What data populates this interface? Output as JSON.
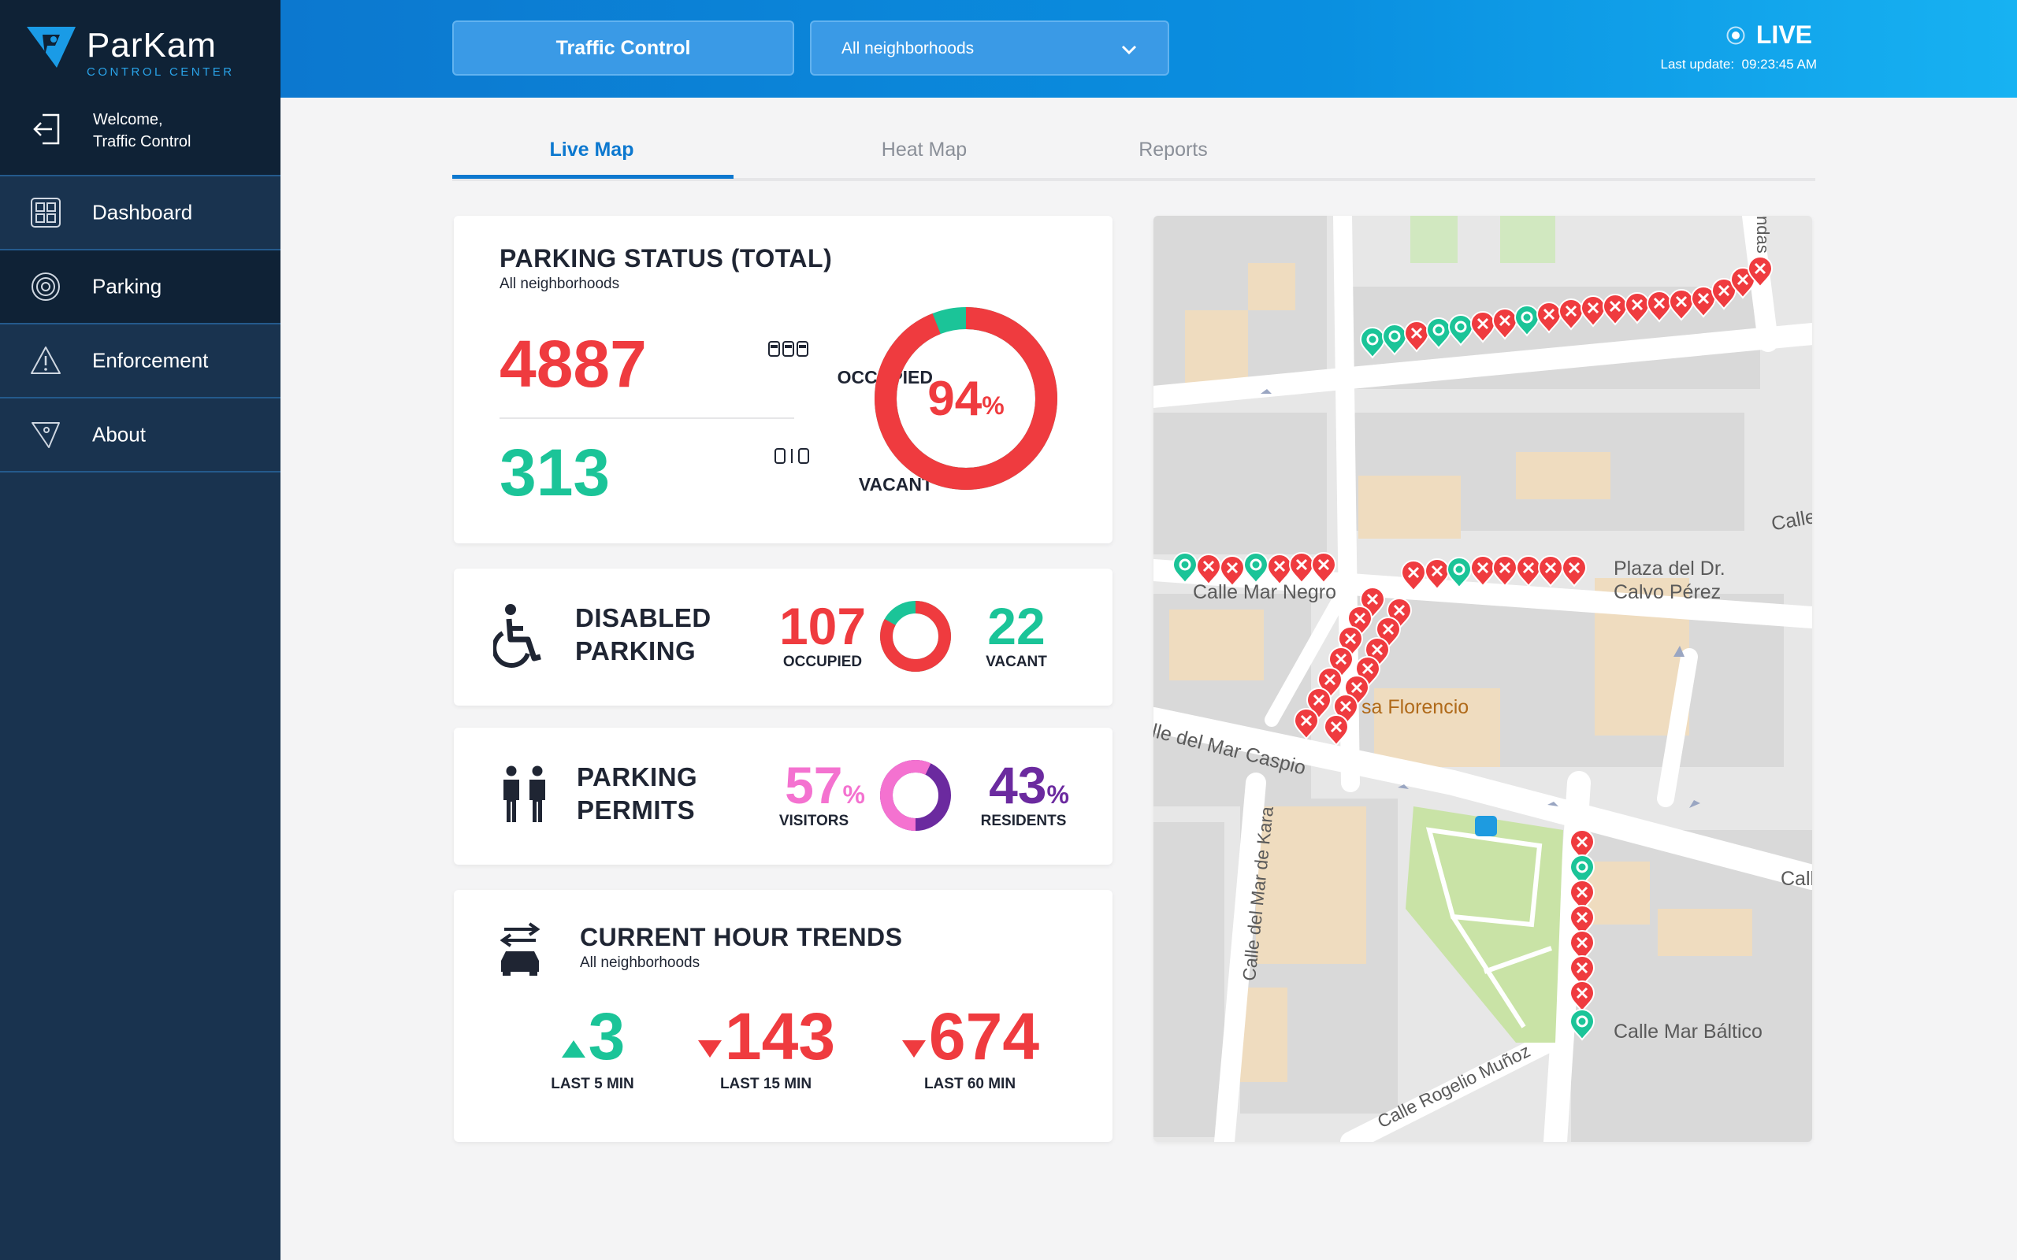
{
  "app": {
    "brand": "ParKam",
    "brand_sub": "CONTROL CENTER",
    "welcome_line1": "Welcome,",
    "welcome_line2": "Traffic Control"
  },
  "sidebar": {
    "items": [
      {
        "label": "Dashboard",
        "icon": "dashboard-grid-icon"
      },
      {
        "label": "Parking",
        "icon": "target-icon"
      },
      {
        "label": "Enforcement",
        "icon": "warning-triangle-icon"
      },
      {
        "label": "About",
        "icon": "parkam-logo-icon"
      }
    ],
    "active_index": 1
  },
  "header": {
    "mode_button": "Traffic Control",
    "neighborhood_select": "All neighborhoods",
    "live_label": "LIVE",
    "last_update_label": "Last update:",
    "last_update_time": "09:23:45 AM"
  },
  "tabs": [
    {
      "label": "Live Map",
      "active": true
    },
    {
      "label": "Heat Map",
      "active": false
    },
    {
      "label": "Reports",
      "active": false
    }
  ],
  "parking_status": {
    "title": "PARKING STATUS (TOTAL)",
    "subtitle": "All neighborhoods",
    "occupied_value": "4887",
    "occupied_label": "OCCUPIED",
    "vacant_value": "313",
    "vacant_label": "VACANT",
    "occupancy_percent": "94",
    "percent_sign": "%",
    "occupancy_fraction": 0.94
  },
  "disabled_parking": {
    "title_line1": "DISABLED",
    "title_line2": "PARKING",
    "occupied_value": "107",
    "occupied_label": "OCCUPIED",
    "vacant_value": "22",
    "vacant_label": "VACANT",
    "occupied_fraction": 0.83
  },
  "parking_permits": {
    "title_line1": "PARKING",
    "title_line2": "PERMITS",
    "visitors_value": "57",
    "visitors_label": "VISITORS",
    "residents_value": "43",
    "residents_label": "RESIDENTS",
    "percent_sign": "%",
    "visitors_fraction": 0.57
  },
  "trends": {
    "title": "CURRENT HOUR TRENDS",
    "subtitle": "All neighborhoods",
    "items": [
      {
        "value": "3",
        "label": "LAST 5 MIN",
        "direction": "up"
      },
      {
        "value": "143",
        "label": "LAST 15 MIN",
        "direction": "down"
      },
      {
        "value": "674",
        "label": "LAST 60 MIN",
        "direction": "down"
      }
    ]
  },
  "map": {
    "street_labels": {
      "mar_negro": "Calle Mar Negro",
      "mar_caspio": "lle del Mar Caspio",
      "mar_de_kara": "Calle del Mar de Kara",
      "mar_baltico": "Calle Mar Báltico",
      "rogelio": "Calle Rogelio Muñoz",
      "plaza_1": "Plaza del Dr.",
      "plaza_2": "Calvo Pérez",
      "casa_florencio": "sa Florencio",
      "calle_right_top": "Calle",
      "calle_right_mid": "Call",
      "ndas": "ndas"
    },
    "colors": {
      "occupied": "#ef3b3f",
      "vacant": "#1bc498",
      "park": "#c9e3a6"
    }
  }
}
